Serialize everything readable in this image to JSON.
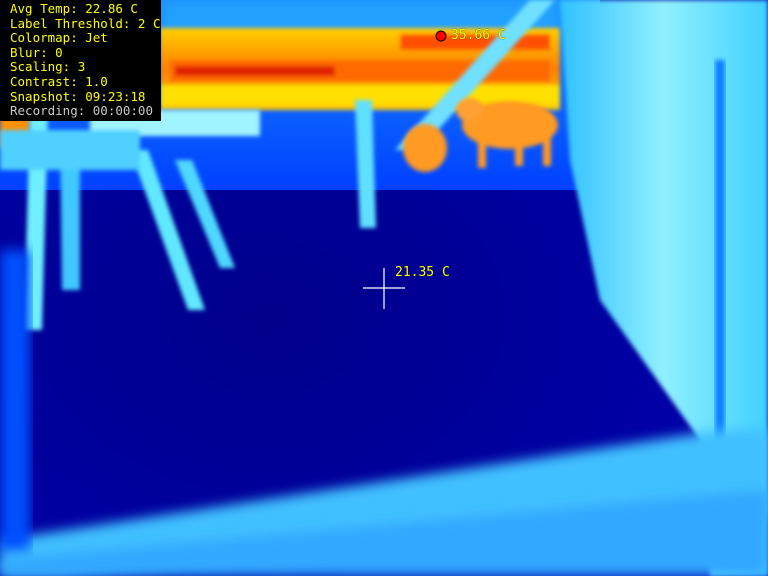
{
  "hud": {
    "lines": [
      "Avg Temp: 22.86 C",
      "Label Threshold: 2 C",
      "Colormap: Jet",
      "Blur: 0",
      "Scaling: 3",
      "Contrast: 1.0",
      "Snapshot: 09:23:18",
      "Recording: 00:00:00"
    ],
    "text_color": "#ffff00",
    "recording_color": "#c8c8c8"
  },
  "max_probe": {
    "label": "35.66 C",
    "marker_color": "#ff0000"
  },
  "center_probe": {
    "label": "21.35 C"
  },
  "colors": {
    "floor": "#00007a",
    "cold_blue": "#0010ff",
    "mid_blue": "#0070ff",
    "cyan": "#40d8ff",
    "yellow": "#ffff00",
    "orange": "#ff9000",
    "red": "#e00000",
    "label": "#ffff00"
  }
}
